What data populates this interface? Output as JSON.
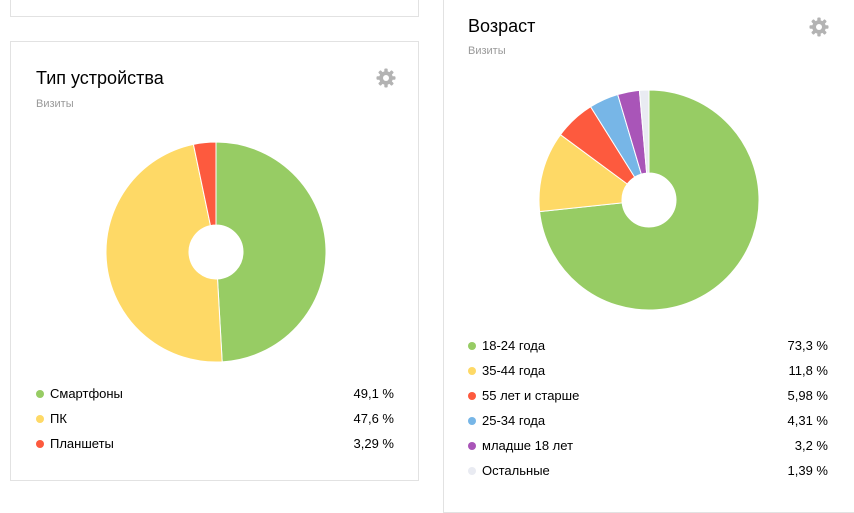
{
  "device_widget": {
    "title": "Тип устройства",
    "metric": "Визиты",
    "icon": "gear-icon"
  },
  "age_widget": {
    "title": "Возраст",
    "metric": "Визиты",
    "icon": "gear-icon"
  },
  "chart_data": [
    {
      "type": "pie",
      "title": "Тип устройства",
      "subtitle": "Визиты",
      "legend_position": "bottom",
      "slices": [
        {
          "label": "Смартфоны",
          "value": 49.1,
          "display": "49,1 %",
          "color": "#97cc64"
        },
        {
          "label": "ПК",
          "value": 47.6,
          "display": "47,6 %",
          "color": "#fed966"
        },
        {
          "label": "Планшеты",
          "value": 3.29,
          "display": "3,29 %",
          "color": "#fd5a3e"
        }
      ]
    },
    {
      "type": "pie",
      "title": "Возраст",
      "subtitle": "Визиты",
      "legend_position": "bottom",
      "slices": [
        {
          "label": "18-24 года",
          "value": 73.3,
          "display": "73,3 %",
          "color": "#97cc64"
        },
        {
          "label": "35-44 года",
          "value": 11.8,
          "display": "11,8 %",
          "color": "#fed966"
        },
        {
          "label": "55 лет и старше",
          "value": 5.98,
          "display": "5,98 %",
          "color": "#fd5a3e"
        },
        {
          "label": "25-34 года",
          "value": 4.31,
          "display": "4,31 %",
          "color": "#77b6e7"
        },
        {
          "label": "младше 18 лет",
          "value": 3.2,
          "display": "3,2 %",
          "color": "#a955b8"
        },
        {
          "label": "Остальные",
          "value": 1.39,
          "display": "1,39 %",
          "color": "#e9ebf2"
        }
      ]
    }
  ]
}
